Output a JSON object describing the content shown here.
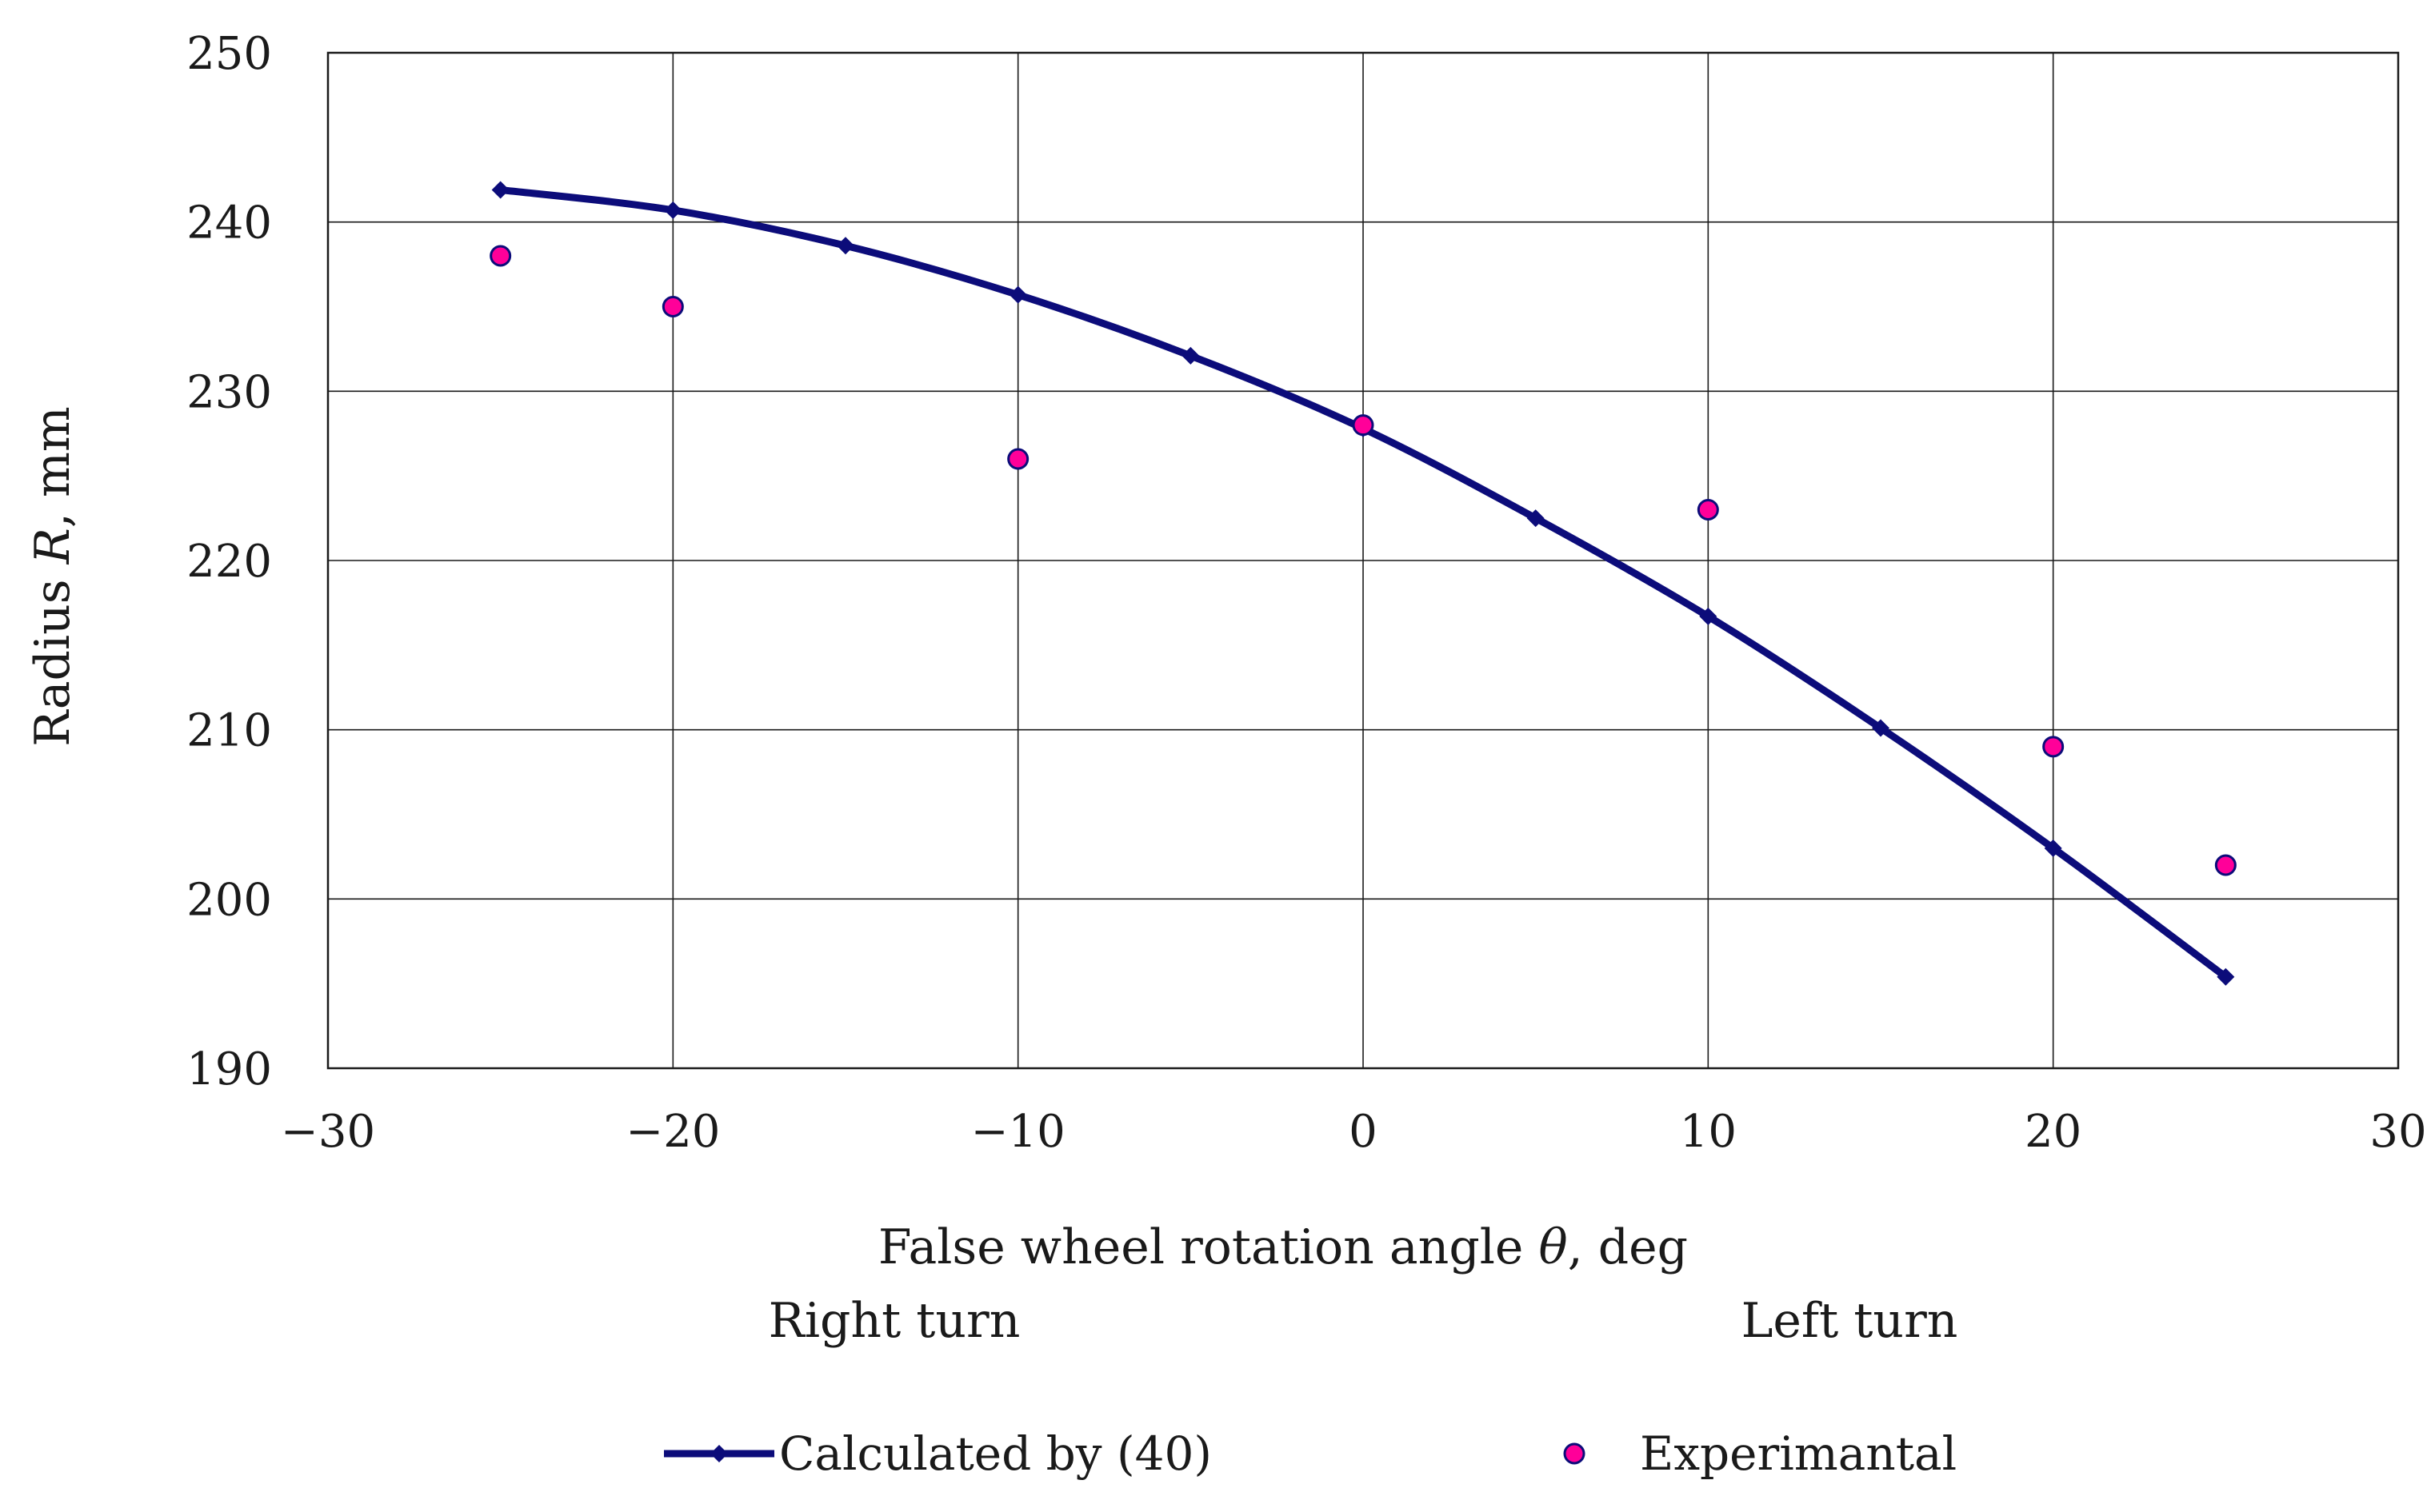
{
  "chart_data": {
    "type": "line",
    "title": "",
    "xlabel": "False wheel rotation angle θ, deg",
    "xlabel_parts": {
      "prefix": "False wheel rotation angle ",
      "symbol": "θ",
      "suffix": ", deg"
    },
    "ylabel": "Radius R, mm",
    "ylabel_parts": {
      "prefix": "Radius ",
      "symbol": "R",
      "suffix": ", mm"
    },
    "xlim": [
      -30,
      30
    ],
    "ylim": [
      190,
      250
    ],
    "x_ticks": [
      -30,
      -20,
      -10,
      0,
      10,
      20,
      30
    ],
    "x_tick_labels": [
      "−30",
      "−20",
      "−10",
      "0",
      "10",
      "20",
      "30"
    ],
    "y_ticks": [
      190,
      200,
      210,
      220,
      230,
      240,
      250
    ],
    "y_tick_labels": [
      "190",
      "200",
      "210",
      "220",
      "230",
      "240",
      "250"
    ],
    "grid": true,
    "annotations": {
      "left": "Right turn",
      "right": "Left turn"
    },
    "legend_position": "bottom",
    "series": [
      {
        "name": "Calculated by (40)",
        "kind": "line-with-diamond-markers",
        "color": "#0c0c7a",
        "x": [
          -25,
          -20,
          -15,
          -10,
          -5,
          0,
          5,
          10,
          15,
          20,
          25
        ],
        "y": [
          241.9,
          240.7,
          238.6,
          235.7,
          232.1,
          227.8,
          222.5,
          216.7,
          210.1,
          203.0,
          195.4
        ]
      },
      {
        "name": "Experimantal",
        "kind": "scatter",
        "color": "#ff0099",
        "outline": "#0c0c7a",
        "x": [
          -25,
          -20,
          -10,
          0,
          10,
          20,
          25
        ],
        "y": [
          238,
          235,
          226,
          228,
          223,
          209,
          202
        ]
      }
    ]
  }
}
